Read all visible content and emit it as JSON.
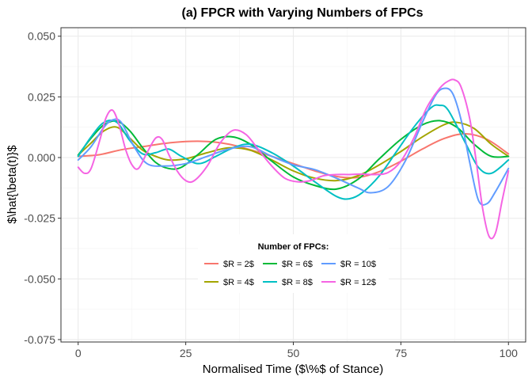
{
  "chart_data": {
    "type": "line",
    "title": "(a) FPCR with Varying Numbers of FPCs",
    "xlabel": "Normalised Time ($\\%$ of Stance)",
    "ylabel": "$\\hat{\\beta(t)}$",
    "xlim": [
      -4,
      104
    ],
    "ylim": [
      -0.076,
      0.0535
    ],
    "x_ticks": [
      0,
      25,
      50,
      75,
      100
    ],
    "x_tick_labels": [
      "0",
      "25",
      "50",
      "75",
      "100"
    ],
    "y_ticks": [
      -0.075,
      -0.05,
      -0.025,
      0.0,
      0.025,
      0.05
    ],
    "y_tick_labels": [
      "-0.075",
      "-0.050",
      "-0.025",
      "0.000",
      "0.025",
      "0.050"
    ],
    "grid": true,
    "legend": {
      "title": "Number of FPCs:",
      "placement": "bottom-center-inside",
      "ncol": 3
    },
    "series": [
      {
        "name": "$R = 2$",
        "color": "#F8766D",
        "x": [
          0,
          5,
          10,
          15,
          20,
          25,
          30,
          35,
          40,
          45,
          50,
          55,
          60,
          65,
          70,
          75,
          80,
          85,
          90,
          95,
          100
        ],
        "y": [
          0.0005,
          0.0012,
          0.0032,
          0.0045,
          0.0058,
          0.0066,
          0.0066,
          0.0055,
          0.0032,
          0.0005,
          -0.0025,
          -0.0055,
          -0.0078,
          -0.0082,
          -0.0058,
          -0.0015,
          0.0035,
          0.0078,
          0.0098,
          0.0075,
          0.0015
        ]
      },
      {
        "name": "$R = 4$",
        "color": "#A3A500",
        "x": [
          0,
          3,
          6,
          9,
          12,
          15,
          18,
          21,
          25,
          30,
          35,
          40,
          45,
          50,
          55,
          60,
          65,
          70,
          75,
          80,
          85,
          88,
          92,
          96,
          100
        ],
        "y": [
          0.001,
          0.006,
          0.011,
          0.0125,
          0.008,
          0.003,
          0.0005,
          -0.001,
          -0.0005,
          0.002,
          0.004,
          0.003,
          -0.001,
          -0.0055,
          -0.0085,
          -0.0095,
          -0.0075,
          -0.003,
          0.0025,
          0.0085,
          0.0135,
          0.0145,
          0.012,
          0.0055,
          0.0005
        ]
      },
      {
        "name": "$R = 6$",
        "color": "#00BA38",
        "x": [
          0,
          3,
          6,
          9,
          12,
          15,
          18,
          21,
          24,
          28,
          32,
          36,
          40,
          45,
          50,
          55,
          60,
          65,
          70,
          75,
          80,
          84,
          88,
          92,
          96,
          100
        ],
        "y": [
          0.001,
          0.008,
          0.0135,
          0.015,
          0.011,
          0.004,
          -0.002,
          -0.0045,
          -0.004,
          0.0015,
          0.0075,
          0.0085,
          0.0055,
          -0.0015,
          -0.008,
          -0.0115,
          -0.013,
          -0.009,
          -0.0005,
          0.0075,
          0.0135,
          0.0152,
          0.0125,
          0.0055,
          0.0005,
          0.0005
        ]
      },
      {
        "name": "$R = 8$",
        "color": "#00BFC4",
        "x": [
          0,
          3,
          6,
          9,
          12,
          15,
          18,
          21,
          24,
          28,
          32,
          36,
          40,
          45,
          50,
          55,
          60,
          63,
          66,
          70,
          74,
          78,
          82,
          84,
          86,
          90,
          93,
          96,
          100
        ],
        "y": [
          0.0005,
          0.0085,
          0.0145,
          0.0145,
          0.007,
          0.0015,
          0.002,
          0.0035,
          0.0005,
          -0.0025,
          0.0005,
          0.004,
          0.0055,
          0.002,
          -0.0035,
          -0.01,
          -0.016,
          -0.017,
          -0.0145,
          -0.0075,
          0.0025,
          0.0125,
          0.0205,
          0.0215,
          0.0195,
          0.006,
          -0.004,
          -0.0065,
          -0.001
        ]
      },
      {
        "name": "$R = 10$",
        "color": "#619CFF",
        "x": [
          0,
          3,
          6,
          8,
          10,
          13,
          16,
          20,
          25,
          30,
          35,
          40,
          45,
          50,
          55,
          60,
          65,
          68,
          72,
          76,
          80,
          83,
          85,
          87,
          89,
          91,
          93,
          95,
          97,
          100
        ],
        "y": [
          -0.001,
          0.0045,
          0.0125,
          0.0155,
          0.0145,
          0.0045,
          -0.0025,
          -0.0035,
          -0.0025,
          0.0005,
          0.0035,
          0.0045,
          0.0005,
          -0.003,
          -0.005,
          -0.0085,
          -0.0125,
          -0.0145,
          -0.012,
          -0.0015,
          0.0145,
          0.0255,
          0.0285,
          0.0265,
          0.0155,
          -0.002,
          -0.0175,
          -0.019,
          -0.014,
          -0.0045
        ]
      },
      {
        "name": "$R = 12$",
        "color": "#F564E3",
        "x": [
          0,
          1.5,
          3,
          5,
          6.5,
          8,
          9.5,
          11,
          12.5,
          14,
          16,
          18,
          19.5,
          21,
          23,
          25,
          27,
          30,
          33,
          36,
          39,
          42,
          45,
          48,
          51,
          54,
          57,
          60,
          63,
          66,
          69,
          72,
          75,
          78,
          81,
          84,
          86,
          87.5,
          89,
          91,
          92.5,
          94,
          95.5,
          97,
          98.5,
          100
        ],
        "y": [
          -0.004,
          -0.0065,
          -0.0045,
          0.007,
          0.0165,
          0.0195,
          0.0135,
          0.0035,
          -0.003,
          -0.0045,
          0.002,
          0.008,
          0.0075,
          0.0015,
          -0.0055,
          -0.0095,
          -0.0095,
          -0.0035,
          0.006,
          0.0112,
          0.0095,
          0.003,
          -0.0035,
          -0.0085,
          -0.01,
          -0.0095,
          -0.0075,
          -0.007,
          -0.007,
          -0.0068,
          -0.007,
          -0.0062,
          -0.0015,
          0.008,
          0.0205,
          0.0285,
          0.0315,
          0.032,
          0.029,
          0.016,
          -0.0015,
          -0.021,
          -0.0325,
          -0.031,
          -0.018,
          -0.0055
        ]
      }
    ]
  }
}
